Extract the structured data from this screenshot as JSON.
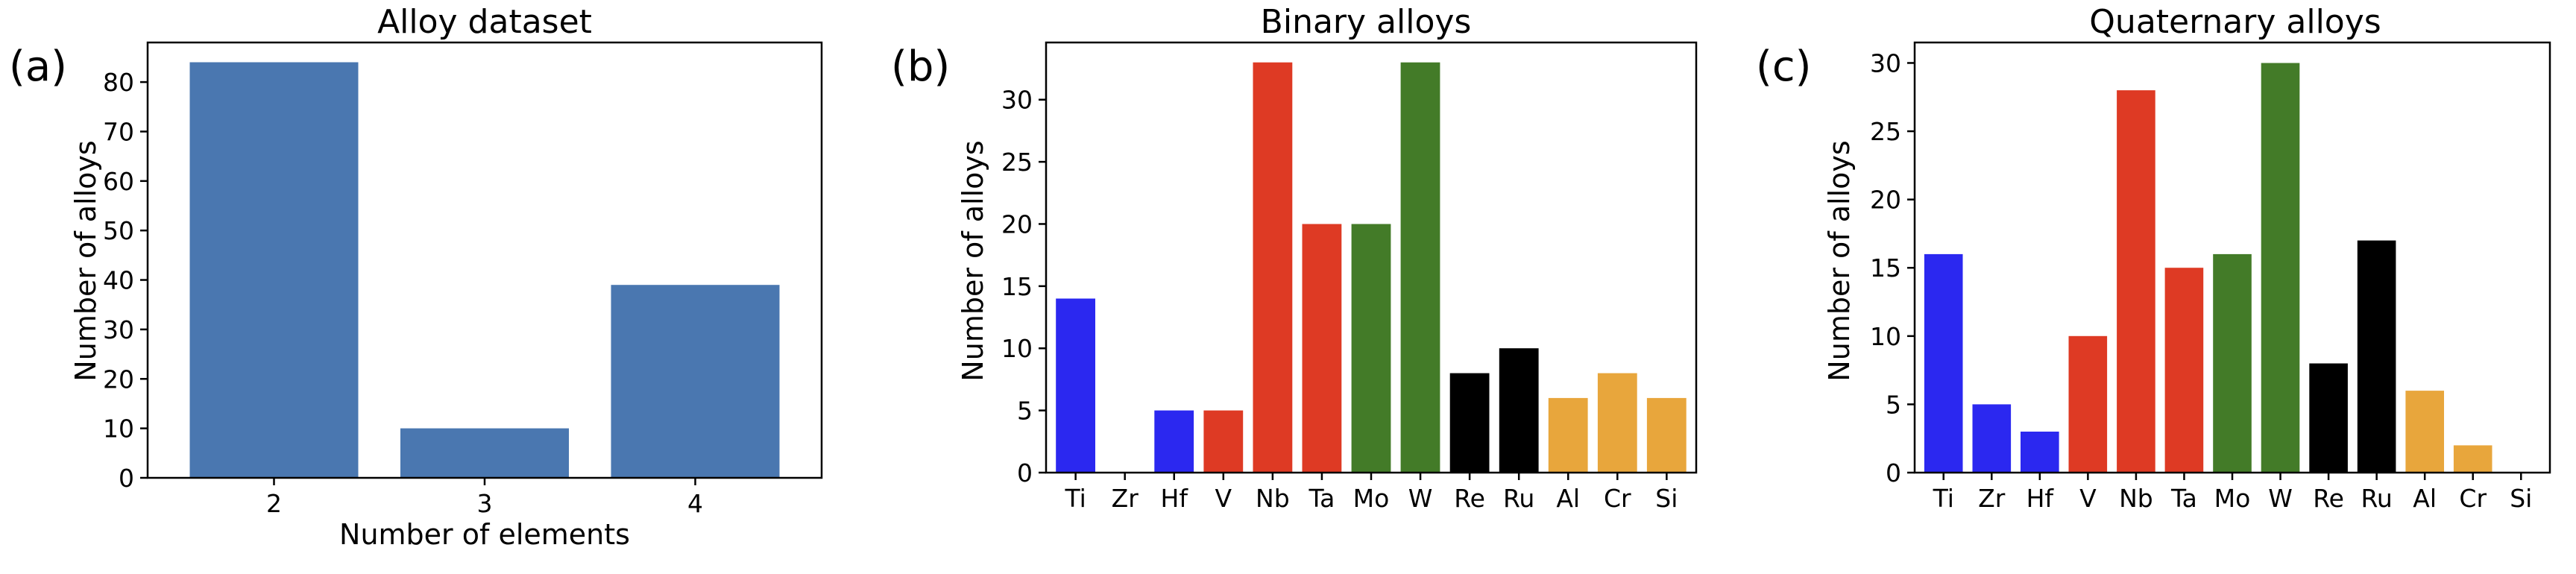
{
  "chart_data": [
    {
      "id": "a",
      "panel_label": "(a)",
      "type": "bar",
      "title": "Alloy dataset",
      "xlabel": "Number of elements",
      "ylabel": "Number of alloys",
      "categories": [
        "2",
        "3",
        "4"
      ],
      "values": [
        84,
        10,
        39
      ],
      "colors": [
        "#4a77b0",
        "#4a77b0",
        "#4a77b0"
      ],
      "ylim": [
        0,
        88
      ],
      "yticks": [
        0,
        10,
        20,
        30,
        40,
        50,
        60,
        70,
        80
      ],
      "grid": false
    },
    {
      "id": "b",
      "panel_label": "(b)",
      "type": "bar",
      "title": "Binary alloys",
      "xlabel": "",
      "ylabel": "Number of alloys",
      "categories": [
        "Ti",
        "Zr",
        "Hf",
        "V",
        "Nb",
        "Ta",
        "Mo",
        "W",
        "Re",
        "Ru",
        "Al",
        "Cr",
        "Si"
      ],
      "values": [
        14,
        0,
        5,
        5,
        33,
        20,
        20,
        33,
        8,
        10,
        6,
        8,
        6
      ],
      "colors": [
        "#2b28f0",
        "#2b28f0",
        "#2b28f0",
        "#de3a24",
        "#de3a24",
        "#de3a24",
        "#437b28",
        "#437b28",
        "#000000",
        "#000000",
        "#e8a63c",
        "#e8a63c",
        "#e8a63c"
      ],
      "ylim": [
        0,
        34.6
      ],
      "yticks": [
        0,
        5,
        10,
        15,
        20,
        25,
        30
      ],
      "grid": false
    },
    {
      "id": "c",
      "panel_label": "(c)",
      "type": "bar",
      "title": "Quaternary alloys",
      "xlabel": "",
      "ylabel": "Number of alloys",
      "categories": [
        "Ti",
        "Zr",
        "Hf",
        "V",
        "Nb",
        "Ta",
        "Mo",
        "W",
        "Re",
        "Ru",
        "Al",
        "Cr",
        "Si"
      ],
      "values": [
        16,
        5,
        3,
        10,
        28,
        15,
        16,
        30,
        8,
        17,
        6,
        2,
        0
      ],
      "colors": [
        "#2b28f0",
        "#2b28f0",
        "#2b28f0",
        "#de3a24",
        "#de3a24",
        "#de3a24",
        "#437b28",
        "#437b28",
        "#000000",
        "#000000",
        "#e8a63c",
        "#e8a63c",
        "#e8a63c"
      ],
      "ylim": [
        0,
        31.5
      ],
      "yticks": [
        0,
        5,
        10,
        15,
        20,
        25,
        30
      ],
      "grid": false
    }
  ]
}
